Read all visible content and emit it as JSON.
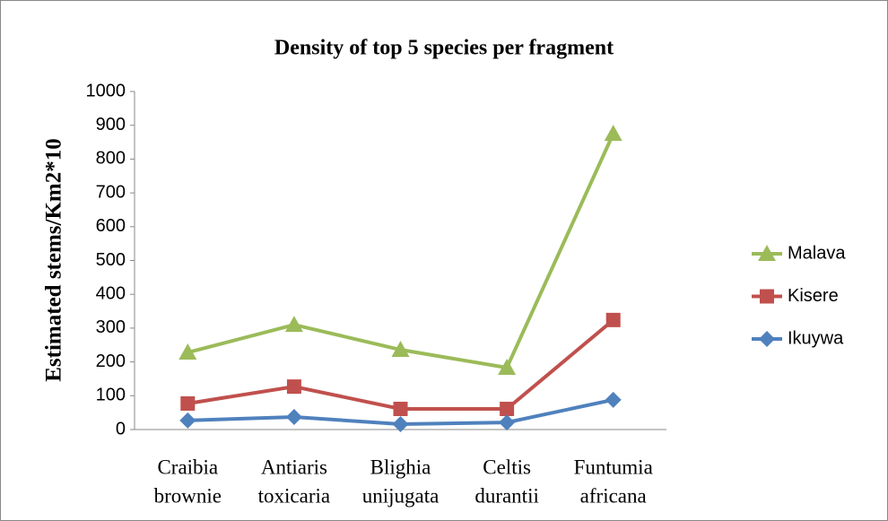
{
  "chart_data": {
    "type": "line",
    "title": "Density of top 5 species per fragment",
    "y_label": "Estimated stems/Km2*10",
    "categories": [
      [
        "Craibia",
        "brownie"
      ],
      [
        "Antiaris",
        "toxicaria"
      ],
      [
        "Blighia",
        "unijugata"
      ],
      [
        "Celtis",
        "durantii"
      ],
      [
        "Funtumia",
        "africana"
      ]
    ],
    "series": [
      {
        "name": "Malava",
        "color": "#9bbb59",
        "marker": "triangle",
        "values": [
          228,
          310,
          236,
          183,
          875
        ]
      },
      {
        "name": "Kisere",
        "color": "#c0504d",
        "marker": "square",
        "values": [
          77,
          127,
          61,
          61,
          324
        ]
      },
      {
        "name": "Ikuywa",
        "color": "#4f81bd",
        "marker": "diamond",
        "values": [
          27,
          37,
          16,
          21,
          88
        ]
      }
    ],
    "ylim": [
      0,
      1000
    ],
    "yticks": [
      0,
      100,
      200,
      300,
      400,
      500,
      600,
      700,
      800,
      900,
      1000
    ],
    "grid": false,
    "legend": "right"
  }
}
